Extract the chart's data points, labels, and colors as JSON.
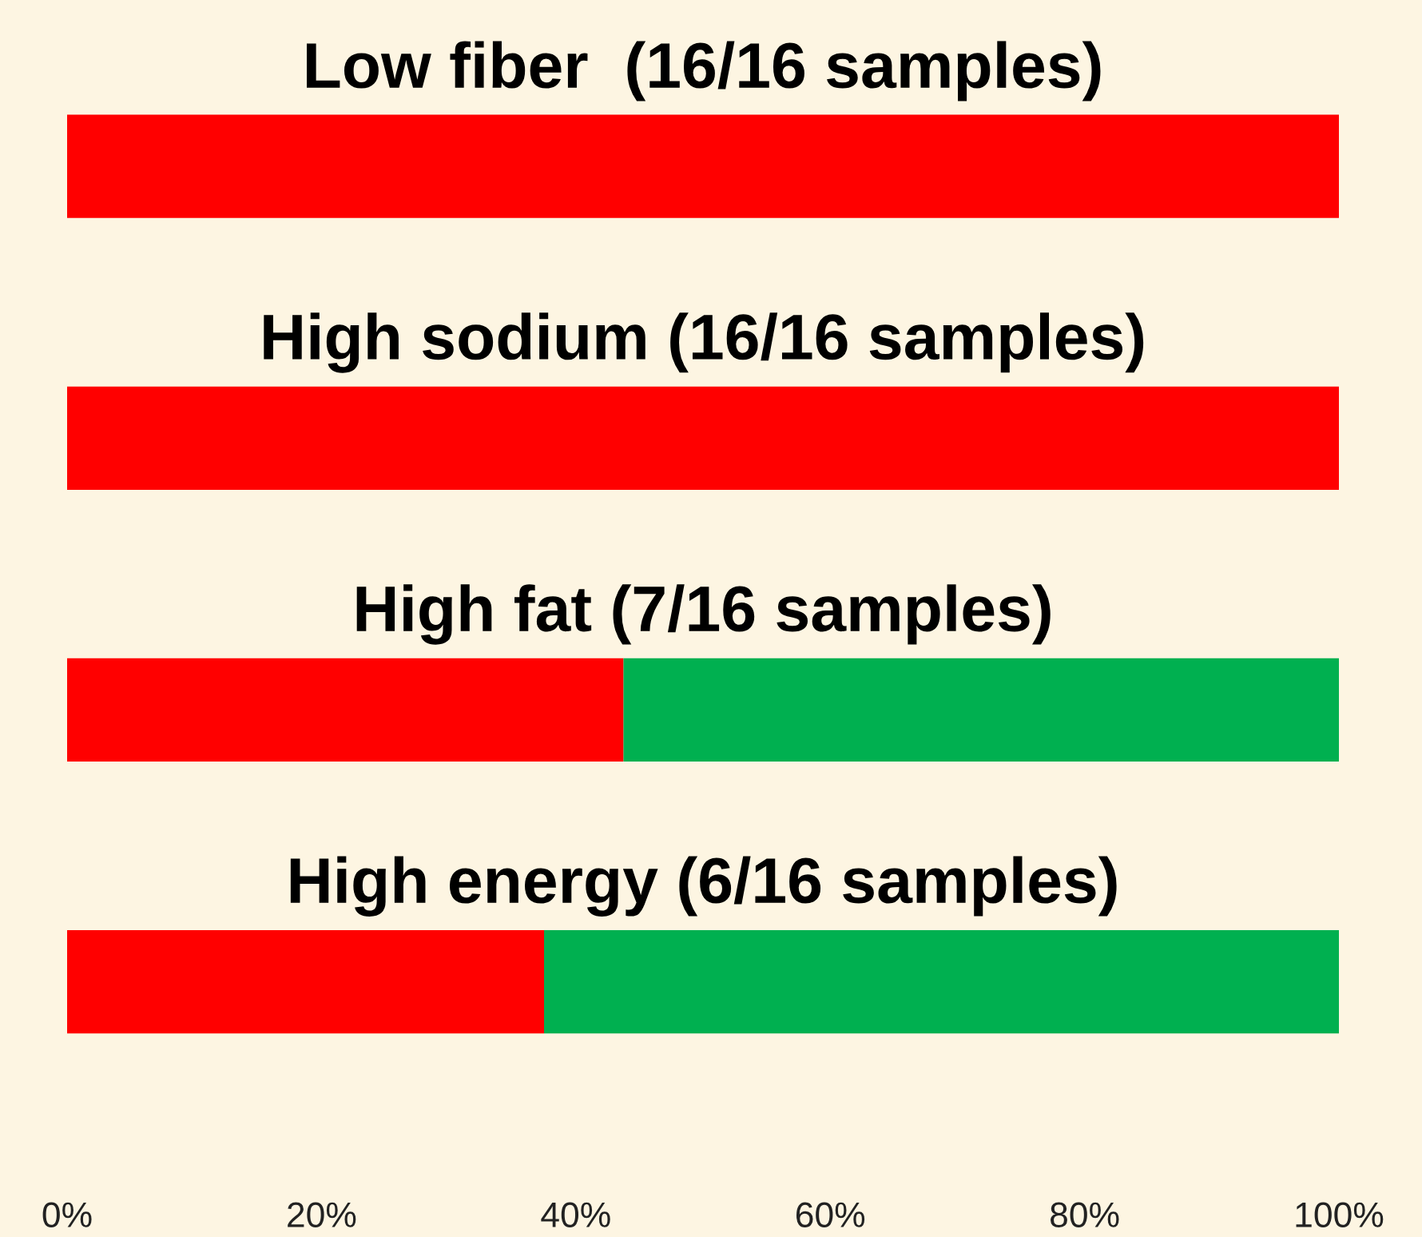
{
  "chart_data": {
    "type": "bar",
    "orientation": "horizontal",
    "stacked": true,
    "categories": [
      "Low fiber  (16/16 samples)",
      "High sodium (16/16 samples)",
      "High fat (7/16 samples)",
      "High energy (6/16 samples)"
    ],
    "series": [
      {
        "color": "#ff0000",
        "values": [
          100,
          100,
          43.75,
          37.5
        ]
      },
      {
        "color": "#00b050",
        "values": [
          0,
          0,
          56.25,
          62.5
        ]
      }
    ],
    "xlim": [
      0,
      100
    ],
    "xticks": [
      {
        "value": 0,
        "label": "0%"
      },
      {
        "value": 20,
        "label": "20%"
      },
      {
        "value": 40,
        "label": "40%"
      },
      {
        "value": 60,
        "label": "60%"
      },
      {
        "value": 80,
        "label": "80%"
      },
      {
        "value": 100,
        "label": "100%"
      }
    ],
    "grid": false,
    "legend": false
  }
}
